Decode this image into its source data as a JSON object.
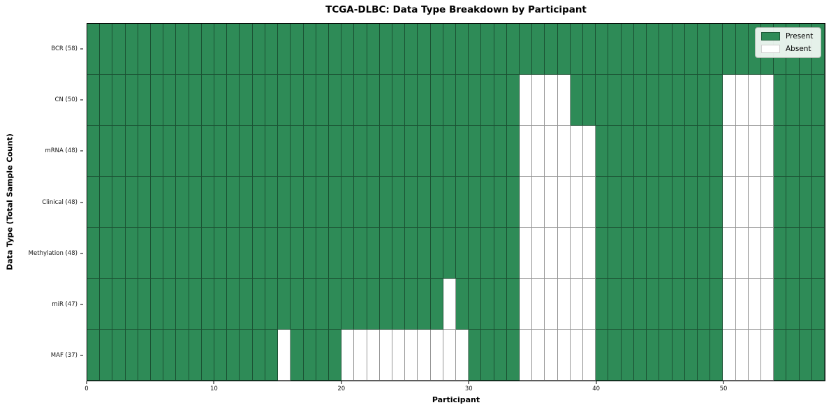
{
  "colors": {
    "present": "#2E8B57",
    "absent": "#FFFFFF",
    "grid_line": "rgba(0,0,0,0.42)",
    "legend_bg": "rgba(255,255,255,0.88)"
  },
  "chart_data": {
    "type": "heatmap",
    "title": "TCGA-DLBC: Data Type Breakdown by Participant",
    "xlabel": "Participant",
    "ylabel": "Data Type (Total Sample Count)",
    "n_participants": 58,
    "x_range": [
      0,
      58
    ],
    "x_ticks": [
      0,
      10,
      20,
      30,
      40,
      50
    ],
    "grid": true,
    "legend_position": "upper right",
    "legend": {
      "present_label": "Present",
      "absent_label": "Absent"
    },
    "cell_states": [
      "Present",
      "Absent"
    ],
    "rows": [
      {
        "label": "BCR (58)",
        "data_type": "BCR",
        "total_samples": 58,
        "absent_columns": []
      },
      {
        "label": "CN (50)",
        "data_type": "CN",
        "total_samples": 50,
        "absent_columns": [
          34,
          35,
          36,
          37,
          50,
          51,
          52,
          53
        ]
      },
      {
        "label": "mRNA (48)",
        "data_type": "mRNA",
        "total_samples": 48,
        "absent_columns": [
          34,
          35,
          36,
          37,
          38,
          39,
          50,
          51,
          52,
          53
        ]
      },
      {
        "label": "Clinical (48)",
        "data_type": "Clinical",
        "total_samples": 48,
        "absent_columns": [
          34,
          35,
          36,
          37,
          38,
          39,
          50,
          51,
          52,
          53
        ]
      },
      {
        "label": "Methylation (48)",
        "data_type": "Methylation",
        "total_samples": 48,
        "absent_columns": [
          34,
          35,
          36,
          37,
          38,
          39,
          50,
          51,
          52,
          53
        ]
      },
      {
        "label": "miR (47)",
        "data_type": "miR",
        "total_samples": 47,
        "absent_columns": [
          28,
          34,
          35,
          36,
          37,
          38,
          39,
          50,
          51,
          52,
          53
        ]
      },
      {
        "label": "MAF (37)",
        "data_type": "MAF",
        "total_samples": 37,
        "absent_columns": [
          15,
          20,
          21,
          22,
          23,
          24,
          25,
          26,
          27,
          28,
          29,
          34,
          35,
          36,
          37,
          38,
          39,
          50,
          51,
          52,
          53
        ]
      }
    ]
  }
}
